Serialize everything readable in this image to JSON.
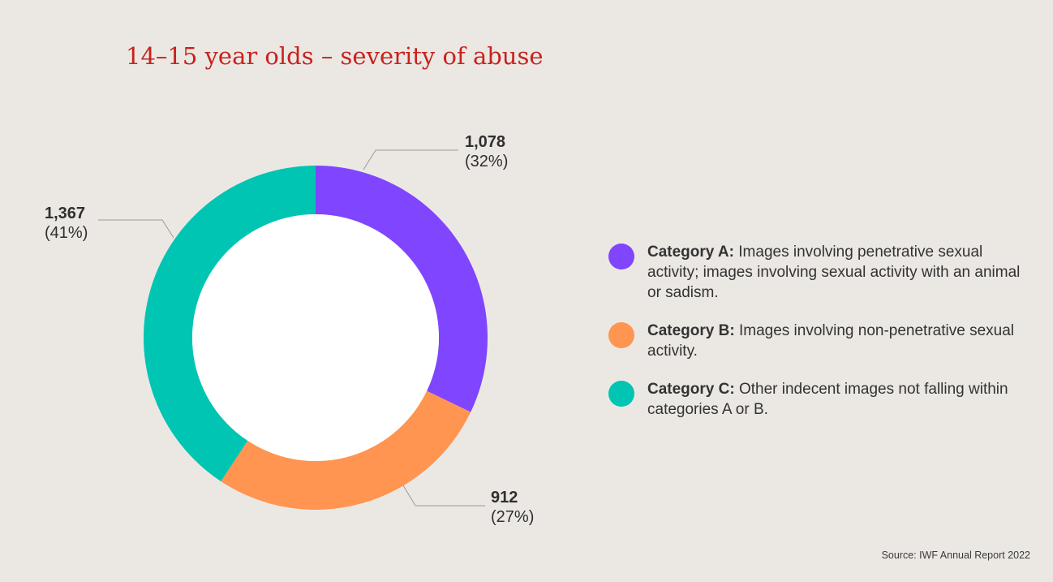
{
  "chart_data": {
    "type": "pie",
    "title": "14–15 year olds – severity of abuse",
    "slices": [
      {
        "key": "a",
        "value": 1078,
        "value_label": "1,078",
        "percent_label": "(32%)",
        "color": "#8045ff",
        "legend_name": "Category A:",
        "legend_desc": "Images involving penetrative sexual activity; images involving sexual activity with an animal or sadism."
      },
      {
        "key": "b",
        "value": 912,
        "value_label": "912",
        "percent_label": "(27%)",
        "color": "#ff9550",
        "legend_name": "Category B:",
        "legend_desc": "Images involving non-penetrative sexual activity."
      },
      {
        "key": "c",
        "value": 1367,
        "value_label": "1,367",
        "percent_label": "(41%)",
        "color": "#00c5b2",
        "legend_name": "Category C:",
        "legend_desc": "Other indecent images not falling within categories A or B."
      }
    ],
    "legend_position": "right",
    "source": "Source: IWF Annual Report 2022"
  }
}
